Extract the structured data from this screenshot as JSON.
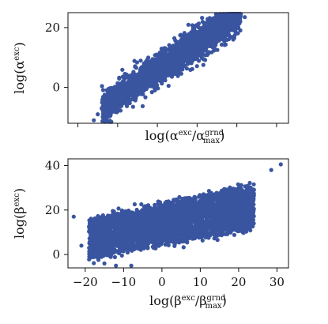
{
  "chart_data": [
    {
      "type": "scatter",
      "xlabel": "log(α^{exc}/α^{grnd}_{max})",
      "ylabel": "log(α^{exc})",
      "xlim": [
        -22.5,
        33
      ],
      "ylim": [
        -12,
        25
      ],
      "yticks": [
        0,
        20
      ],
      "xticks_labeled": false,
      "marker_color": "#3a55a0",
      "grid": false,
      "band": {
        "x_min": -16,
        "x_max": 22,
        "y_low_at_min": -11,
        "y_high_at_max": 23,
        "width": 9
      },
      "outliers": [
        [
          -16,
          -11
        ],
        [
          -15,
          -9
        ],
        [
          22,
          23.5
        ],
        [
          20,
          22
        ],
        [
          -14,
          -7
        ],
        [
          -13,
          -8
        ]
      ]
    },
    {
      "type": "scatter",
      "xlabel": "log(β^{exc}/β^{grnd}_{max})",
      "ylabel": "log(β^{exc})",
      "xlim": [
        -24.5,
        33
      ],
      "ylim": [
        -6,
        43
      ],
      "yticks": [
        0,
        20,
        40
      ],
      "xticks": [
        -20,
        -10,
        0,
        10,
        20,
        30
      ],
      "marker_color": "#3a55a0",
      "grid": false,
      "cloud": {
        "x_min": -20,
        "x_max": 24,
        "y_low_at_min": -2,
        "y_low_at_max": 12,
        "y_high_at_min": 15,
        "y_high_at_max": 31
      },
      "outliers": [
        [
          -23,
          17
        ],
        [
          31,
          40.5
        ],
        [
          28.5,
          38
        ],
        [
          -21,
          4
        ],
        [
          -19,
          3
        ],
        [
          -17,
          -1
        ],
        [
          -15,
          -4
        ],
        [
          -12,
          -5
        ],
        [
          -8,
          -5
        ],
        [
          24,
          29
        ]
      ]
    }
  ]
}
